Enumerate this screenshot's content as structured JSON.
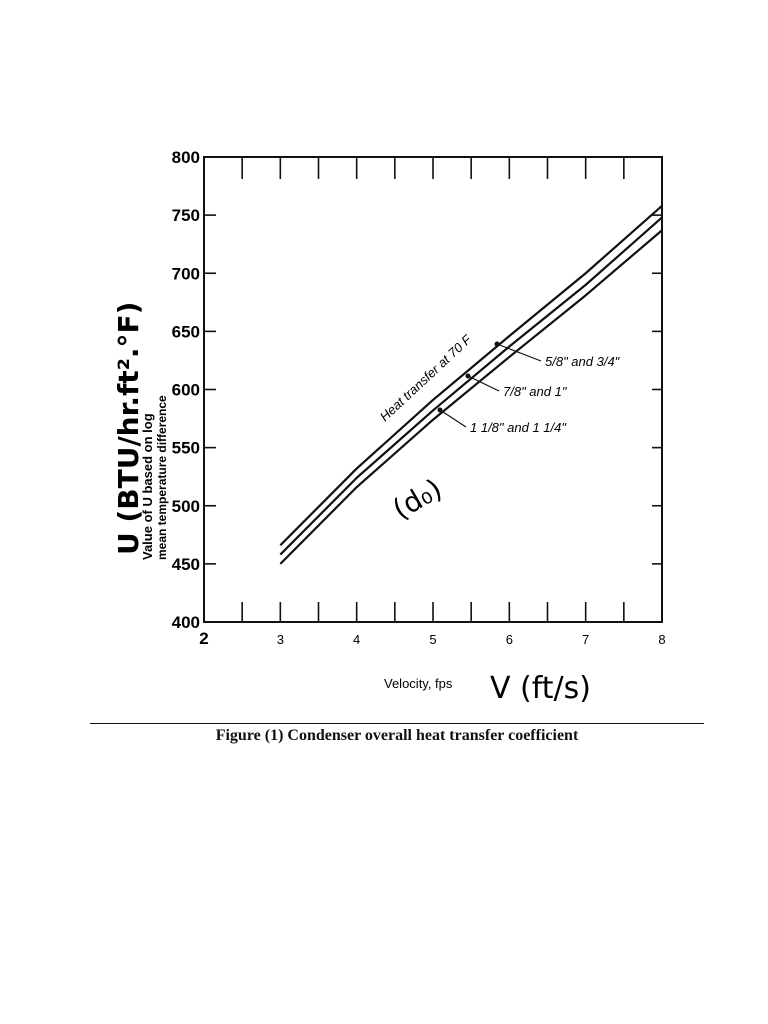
{
  "chart_data": {
    "type": "line",
    "xlabel": "Velocity, fps",
    "xlabel_handwritten": "V (ft/s)",
    "ylabel_printed_line1": "Value of U based on log",
    "ylabel_printed_line2": "mean temperature difference",
    "ylabel_handwritten": "U (BTU/hr.ft².°F)",
    "xlim": [
      2,
      8
    ],
    "ylim": [
      400,
      800
    ],
    "x_ticks": [
      "2",
      "3",
      "4",
      "5",
      "6",
      "7",
      "8"
    ],
    "y_ticks": [
      "400",
      "450",
      "500",
      "550",
      "600",
      "650",
      "700",
      "750",
      "800"
    ],
    "grid": false,
    "curve_title": "Heat transfer at 70 F",
    "annotation_handwritten": "(d₀)",
    "series": [
      {
        "name": "5/8\" and 3/4\"",
        "x": [
          3,
          4,
          5,
          6,
          7,
          8
        ],
        "y": [
          466,
          532,
          591,
          646,
          700,
          758
        ]
      },
      {
        "name": "7/8\" and 1\"",
        "x": [
          3,
          4,
          5,
          6,
          7,
          8
        ],
        "y": [
          458,
          524,
          582,
          637,
          690,
          748
        ]
      },
      {
        "name": "1 1/8\" and 1 1/4\"",
        "x": [
          3,
          4,
          5,
          6,
          7,
          8
        ],
        "y": [
          450,
          516,
          574,
          628,
          681,
          737
        ]
      }
    ]
  },
  "caption": "Figure (1) Condenser overall heat transfer coefficient"
}
